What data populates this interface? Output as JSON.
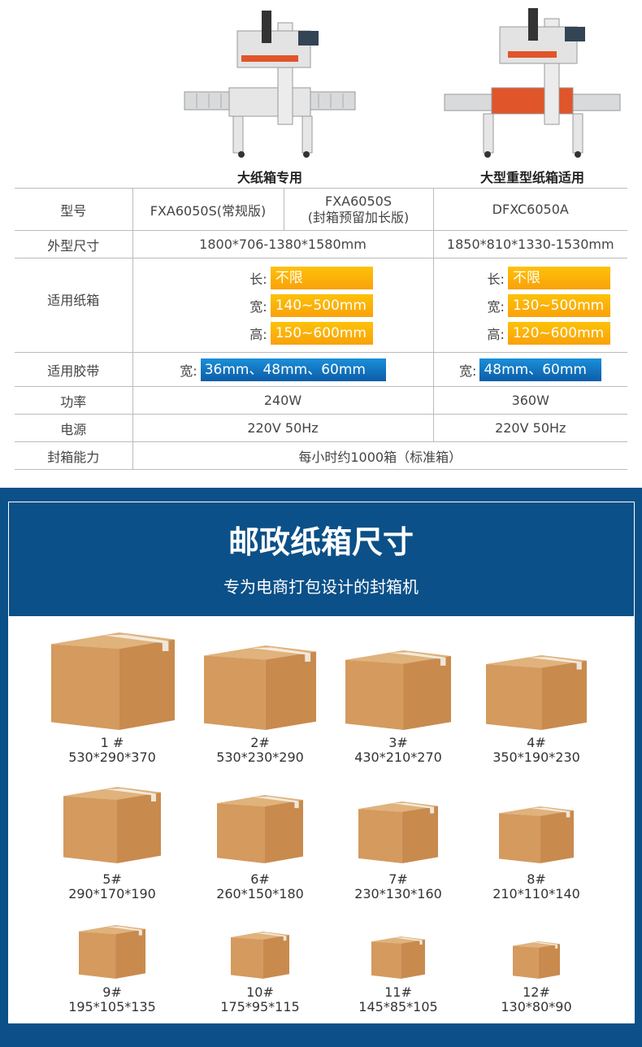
{
  "machines": [
    {
      "caption": "大纸箱专用",
      "icon": "case-sealer-machine-image"
    },
    {
      "caption": "大型重型纸箱适用",
      "icon": "heavy-case-sealer-machine-image"
    }
  ],
  "spec_table": {
    "rows": {
      "model": {
        "label": "型号",
        "values": [
          "FXA6050S(常规版)",
          "FXA6050S",
          "(封箱预留加长版)",
          "DFXC6050A"
        ]
      },
      "dimensions": {
        "label": "外型尺寸",
        "values": [
          "1800*706-1380*1580mm",
          "1850*810*1330-1530mm"
        ]
      },
      "carton": {
        "label": "适用纸箱",
        "keys": [
          "长:",
          "宽:",
          "高:"
        ],
        "col1": [
          "不限",
          "140~500mm",
          "150~600mm"
        ],
        "col2": [
          "不限",
          "130~500mm",
          "120~600mm"
        ]
      },
      "tape": {
        "label": "适用胶带",
        "key": "宽:",
        "values": [
          "36mm、48mm、60mm",
          "48mm、60mm"
        ]
      },
      "power": {
        "label": "功率",
        "values": [
          "240W",
          "360W"
        ]
      },
      "supply": {
        "label": "电源",
        "values": [
          "220V 50Hz",
          "220V 50Hz"
        ]
      },
      "capacity": {
        "label": "封箱能力",
        "value": "每小时约1000箱（标准箱）"
      }
    },
    "colors": {
      "highlight_orange": "#f9a10a",
      "highlight_blue": "#0c5da8"
    }
  },
  "postal": {
    "title": "邮政纸箱尺寸",
    "subtitle": "专为电商打包设计的封箱机",
    "background": "#0b5088",
    "boxes": [
      {
        "id": "1 #",
        "size": "530*290*370"
      },
      {
        "id": "2#",
        "size": "530*230*290"
      },
      {
        "id": "3#",
        "size": "430*210*270"
      },
      {
        "id": "4#",
        "size": "350*190*230"
      },
      {
        "id": "5#",
        "size": "290*170*190"
      },
      {
        "id": "6#",
        "size": "260*150*180"
      },
      {
        "id": "7#",
        "size": "230*130*160"
      },
      {
        "id": "8#",
        "size": "210*110*140"
      },
      {
        "id": "9#",
        "size": "195*105*135"
      },
      {
        "id": "10#",
        "size": "175*95*115"
      },
      {
        "id": "11#",
        "size": "145*85*105"
      },
      {
        "id": "12#",
        "size": "130*80*90"
      }
    ]
  }
}
